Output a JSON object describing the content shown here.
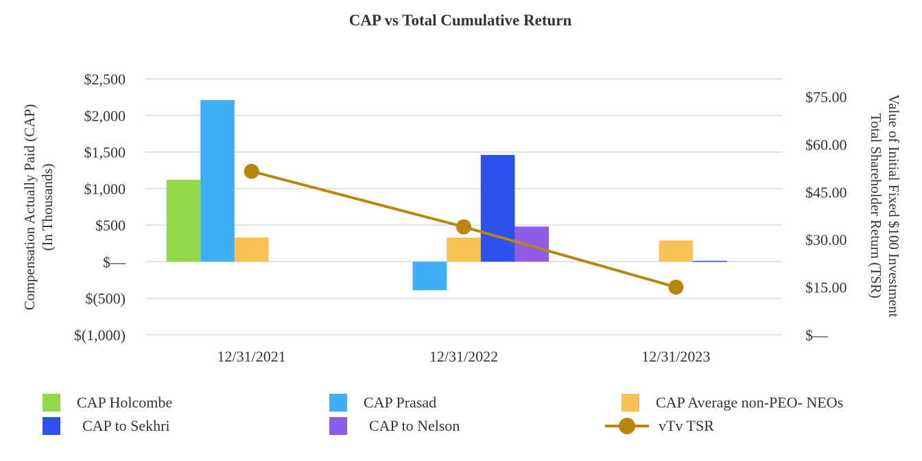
{
  "chart_data": {
    "type": "bar",
    "title": "CAP vs Total Cumulative Return",
    "ylabel": [
      "Compensation Actually Paid (CAP)",
      "(In Thousands)"
    ],
    "y2label": [
      "Value of Initial Fixed $100 Investment",
      "Total Shareholder Return (TSR)"
    ],
    "categories": [
      "12/31/2021",
      "12/31/2022",
      "12/31/2023"
    ],
    "ylim": [
      -1000,
      2500
    ],
    "y2lim": [
      0,
      80
    ],
    "yticks": [
      -1000,
      -500,
      0,
      500,
      1000,
      1500,
      2000,
      2500
    ],
    "yticklabels": [
      "$(1,000)",
      "$(500)",
      "$—",
      "$500",
      "$1,000",
      "$1,500",
      "$2,000",
      "$2,500"
    ],
    "y2ticks": [
      0,
      15,
      30,
      45,
      60,
      75
    ],
    "y2ticklabels": [
      "$—",
      "$15.00",
      "$30.00",
      "$45.00",
      "$60.00",
      "$75.00"
    ],
    "grid": true,
    "series": [
      {
        "name": "CAP Holcombe",
        "color": "#92D848",
        "values": [
          1120,
          null,
          null
        ]
      },
      {
        "name": "CAP Prasad",
        "color": "#3DAEF7",
        "values": [
          2210,
          -390,
          null
        ]
      },
      {
        "name": "CAP Average non-PEO- NEOs",
        "color": "#F8C154",
        "values": [
          330,
          330,
          290
        ]
      },
      {
        "name": "CAP to Sekhri",
        "color": "#2B50EC",
        "values": [
          null,
          1460,
          10
        ]
      },
      {
        "name": "CAP to Nelson",
        "color": "#8F5CE8",
        "values": [
          null,
          480,
          null
        ]
      }
    ],
    "line_series": {
      "name": "vTv TSR",
      "color": "#B8860B",
      "axis": "right",
      "values": [
        51.5,
        34.0,
        15.0
      ]
    },
    "legend_position": "bottom"
  }
}
